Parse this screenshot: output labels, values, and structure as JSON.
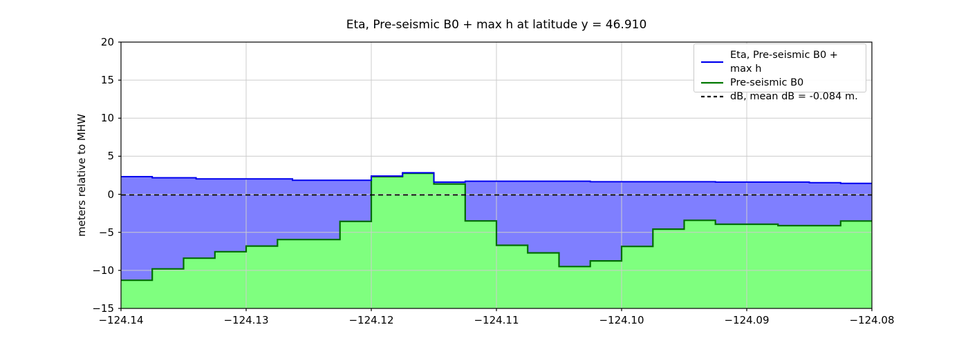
{
  "title": "Eta, Pre-seismic B0 + max h at latitude y = 46.910",
  "axes": {
    "ylabel": "meters relative to MHW",
    "xtick_labels": [
      "−124.14",
      "−124.13",
      "−124.12",
      "−124.11",
      "−124.10",
      "−124.09",
      "−124.08"
    ],
    "ytick_labels": [
      "−15",
      "−10",
      "−5",
      "0",
      "5",
      "10",
      "15",
      "20"
    ]
  },
  "legend": {
    "entries": [
      {
        "label": "Eta, Pre-seismic B0 + max h",
        "color": "#0000ee",
        "dash": false
      },
      {
        "label": "Pre-seismic B0",
        "color": "#007700",
        "dash": false
      },
      {
        "label": "dB, mean dB = -0.084 m.",
        "color": "#000000",
        "dash": true
      }
    ]
  },
  "colors": {
    "eta_line": "#0000ee",
    "eta_fill": "rgba(0,0,255,0.5)",
    "b0_line": "#006d00",
    "b0_fill": "rgba(0,255,0,0.5)",
    "db_line": "#000000",
    "grid": "#cccccc",
    "frame": "#000000"
  },
  "chart_data": {
    "type": "area",
    "title": "Eta, Pre-seismic B0 + max h at latitude y = 46.910",
    "xlabel": "",
    "ylabel": "meters relative to MHW",
    "xlim": [
      -124.14,
      -124.08
    ],
    "ylim": [
      -15,
      20
    ],
    "xticks": [
      -124.14,
      -124.13,
      -124.12,
      -124.11,
      -124.1,
      -124.09,
      -124.08
    ],
    "yticks": [
      -15,
      -10,
      -5,
      0,
      5,
      10,
      15,
      20
    ],
    "grid": true,
    "legend_position": "upper right",
    "series": [
      {
        "name": "Eta, Pre-seismic B0 + max h",
        "type": "step-fill",
        "fill_to": "Pre-seismic B0",
        "edges": [
          -124.14,
          -124.1375,
          -124.134,
          -124.1263,
          -124.12,
          -124.1175,
          -124.115,
          -124.1125,
          -124.1025,
          -124.0925,
          -124.085,
          -124.0825,
          -124.08
        ],
        "values": [
          2.32,
          2.17,
          2.02,
          1.85,
          2.4,
          2.83,
          1.6,
          1.72,
          1.65,
          1.6,
          1.52,
          1.44
        ]
      },
      {
        "name": "Pre-seismic B0",
        "type": "step-fill",
        "fill_to": "bottom",
        "edges": [
          -124.14,
          -124.1375,
          -124.135,
          -124.1325,
          -124.13,
          -124.1275,
          -124.125,
          -124.1225,
          -124.12,
          -124.1175,
          -124.115,
          -124.1125,
          -124.11,
          -124.1075,
          -124.105,
          -124.1025,
          -124.1,
          -124.0975,
          -124.095,
          -124.0925,
          -124.09,
          -124.0875,
          -124.085,
          -124.0825,
          -124.08
        ],
        "values": [
          -11.3,
          -9.8,
          -8.4,
          -7.55,
          -6.8,
          -5.95,
          -5.95,
          -3.57,
          2.32,
          2.75,
          1.35,
          -3.5,
          -6.7,
          -7.7,
          -9.5,
          -8.75,
          -6.85,
          -4.58,
          -3.42,
          -3.94,
          -3.94,
          -4.12,
          -4.12,
          -3.51
        ]
      },
      {
        "name": "dB, mean dB = -0.084 m.",
        "type": "hline",
        "value": -0.084,
        "dash": true
      }
    ]
  }
}
